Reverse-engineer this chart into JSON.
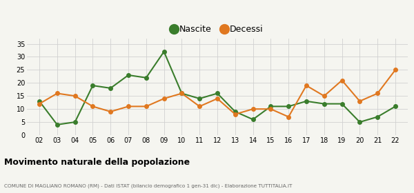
{
  "years": [
    2,
    3,
    4,
    5,
    6,
    7,
    8,
    9,
    10,
    11,
    12,
    13,
    14,
    15,
    16,
    17,
    18,
    19,
    20,
    21,
    22
  ],
  "nascite": [
    13,
    4,
    5,
    19,
    18,
    23,
    22,
    32,
    16,
    14,
    16,
    9,
    6,
    11,
    11,
    13,
    12,
    12,
    5,
    7,
    11
  ],
  "decessi": [
    12,
    16,
    15,
    11,
    9,
    11,
    11,
    14,
    16,
    11,
    14,
    8,
    10,
    10,
    7,
    19,
    15,
    21,
    13,
    16,
    25
  ],
  "nascite_color": "#3a7d2c",
  "decessi_color": "#e07820",
  "background_color": "#f5f5f0",
  "grid_color": "#d0d0d0",
  "title": "Movimento naturale della popolazione",
  "subtitle": "COMUNE DI MAGLIANO ROMANO (RM) - Dati ISTAT (bilancio demografico 1 gen-31 dic) - Elaborazione TUTTITALIA.IT",
  "ylabel_ticks": [
    0,
    5,
    10,
    15,
    20,
    25,
    30,
    35
  ],
  "ylim": [
    0,
    37
  ],
  "marker_size": 4,
  "line_width": 1.5
}
